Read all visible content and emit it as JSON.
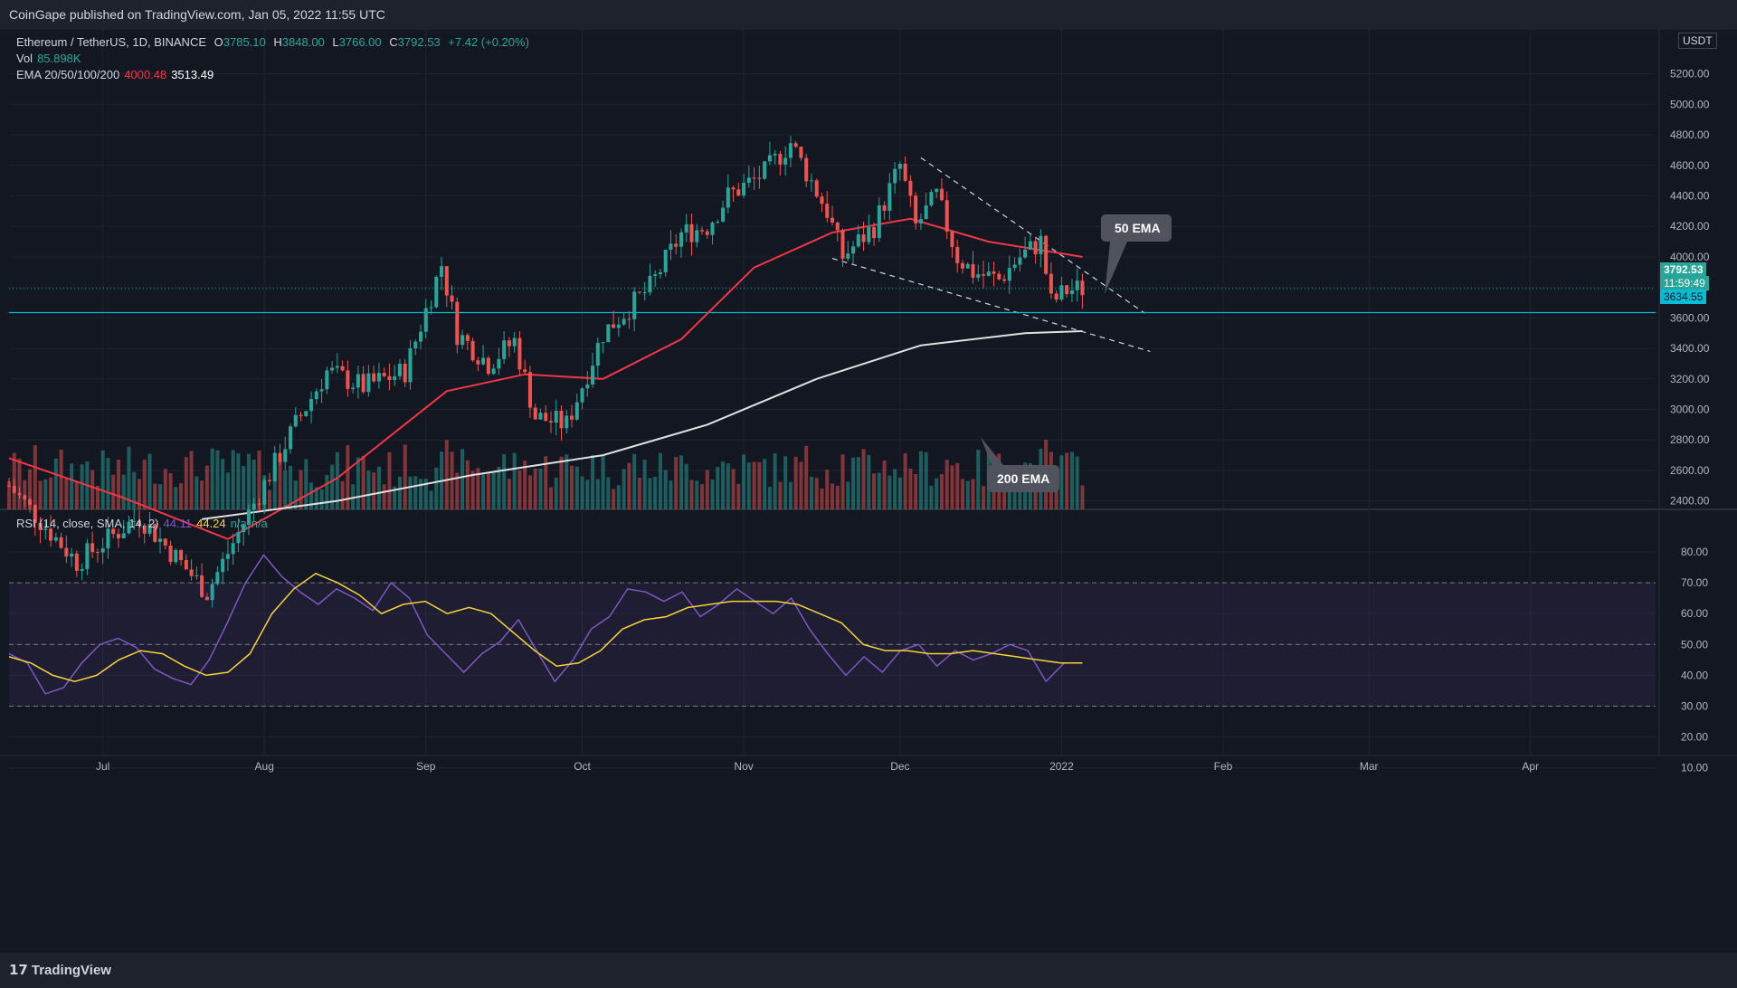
{
  "header": {
    "publisher": "CoinGape published on TradingView.com, Jan 05, 2022 11:55 UTC"
  },
  "footer": {
    "brand": "TradingView"
  },
  "symbol": {
    "name": "Ethereum / TetherUS, 1D, BINANCE",
    "open_label": "O",
    "open": "3785.10",
    "high_label": "H",
    "high": "3848.00",
    "low_label": "L",
    "low": "3766.00",
    "close_label": "C",
    "close": "3792.53",
    "change": "+7.42 (+0.20%)"
  },
  "volume": {
    "label": "Vol",
    "value": "85.898K"
  },
  "ema_legend": {
    "label": "EMA 20/50/100/200",
    "v1": "4000.48",
    "v2": "3513.49"
  },
  "rsi_legend": {
    "label": "RSI (14, close, SMA, 14, 2)",
    "rsi": "44.11",
    "sma": "44.24",
    "na1": "n/a",
    "na2": "n/a"
  },
  "currency_badge": "USDT",
  "price_axis": {
    "ticks": [
      "5200.00",
      "5000.00",
      "4800.00",
      "4600.00",
      "4400.00",
      "4200.00",
      "4000.00",
      "3800.00",
      "3600.00",
      "3400.00",
      "3200.00",
      "3000.00",
      "2800.00",
      "2600.00",
      "2400.00"
    ]
  },
  "rsi_axis": {
    "ticks": [
      "80.00",
      "70.00",
      "60.00",
      "50.00",
      "40.00",
      "30.00",
      "20.00",
      "10.00"
    ]
  },
  "time_axis": {
    "ticks": [
      "Jul",
      "Aug",
      "Sep",
      "Oct",
      "Nov",
      "Dec",
      "2022",
      "Feb",
      "Mar",
      "Apr"
    ]
  },
  "price_labels": {
    "last_price": "3792.53",
    "countdown": "11:59:49",
    "support_level": "3634.55"
  },
  "annotations": {
    "ema50": "50 EMA",
    "ema200": "200 EMA"
  },
  "colors": {
    "background": "#131722",
    "bull": "#26a69a",
    "bear": "#ef5350",
    "ema50": "#f23645",
    "ema200": "#e0e0e0",
    "rsi": "#7e57c2",
    "rsi_sma": "#f5d33b",
    "support": "#00bcd4"
  },
  "chart_data": [
    {
      "type": "candlestick",
      "title": "Ethereum / TetherUS, 1D, BINANCE",
      "ylim": [
        2300,
        5300
      ],
      "x_range": [
        "2021-06-13",
        "2022-04-25"
      ],
      "key_prices": {
        "ath_high": 4860,
        "december_low": 3500,
        "last_close": 3792.53,
        "support": 3634.55
      },
      "ema50_points": [
        [
          "2021-06-13",
          2680
        ],
        [
          "2021-07-05",
          2420
        ],
        [
          "2021-07-25",
          2150
        ],
        [
          "2021-08-15",
          2550
        ],
        [
          "2021-09-05",
          3120
        ],
        [
          "2021-09-20",
          3230
        ],
        [
          "2021-10-05",
          3200
        ],
        [
          "2021-10-20",
          3460
        ],
        [
          "2021-11-03",
          3930
        ],
        [
          "2021-11-18",
          4160
        ],
        [
          "2021-12-03",
          4250
        ],
        [
          "2021-12-18",
          4100
        ],
        [
          "2022-01-05",
          4000
        ]
      ],
      "ema200_points": [
        [
          "2021-07-20",
          2280
        ],
        [
          "2021-08-15",
          2400
        ],
        [
          "2021-09-10",
          2570
        ],
        [
          "2021-10-05",
          2700
        ],
        [
          "2021-10-25",
          2900
        ],
        [
          "2021-11-15",
          3200
        ],
        [
          "2021-12-05",
          3420
        ],
        [
          "2021-12-25",
          3500
        ],
        [
          "2022-01-05",
          3513
        ]
      ],
      "trendlines": {
        "upper": [
          [
            "2021-12-05",
            4650
          ],
          [
            "2022-01-17",
            3630
          ]
        ],
        "lower": [
          [
            "2021-11-18",
            3990
          ],
          [
            "2022-01-18",
            3380
          ]
        ]
      },
      "support_line": 3634.55
    },
    {
      "type": "line",
      "title": "RSI (14, close, SMA, 14, 2)",
      "ylim": [
        8,
        85
      ],
      "bands": {
        "upper": 70,
        "middle": 50,
        "lower": 30
      },
      "series": [
        {
          "name": "RSI",
          "values": [
            47,
            44,
            34,
            36,
            44,
            50,
            52,
            49,
            42,
            39,
            37,
            45,
            57,
            70,
            79,
            72,
            67,
            63,
            68,
            65,
            61,
            70,
            65,
            53,
            47,
            41,
            47,
            51,
            58,
            48,
            38,
            45,
            55,
            59,
            68,
            67,
            64,
            67,
            59,
            63,
            68,
            64,
            60,
            65,
            55,
            47,
            40,
            46,
            41,
            48,
            50,
            43,
            48,
            45,
            47,
            50,
            48,
            38,
            44,
            44
          ]
        },
        {
          "name": "SMA",
          "values": [
            46,
            44,
            40,
            38,
            40,
            45,
            48,
            47,
            43,
            40,
            41,
            47,
            60,
            68,
            73,
            70,
            66,
            60,
            63,
            64,
            60,
            62,
            60,
            54,
            48,
            43,
            44,
            48,
            55,
            58,
            59,
            62,
            63,
            64,
            64,
            64,
            63,
            60,
            57,
            50,
            48,
            48,
            47,
            47,
            48,
            47,
            46,
            45,
            44,
            44
          ]
        }
      ]
    }
  ]
}
